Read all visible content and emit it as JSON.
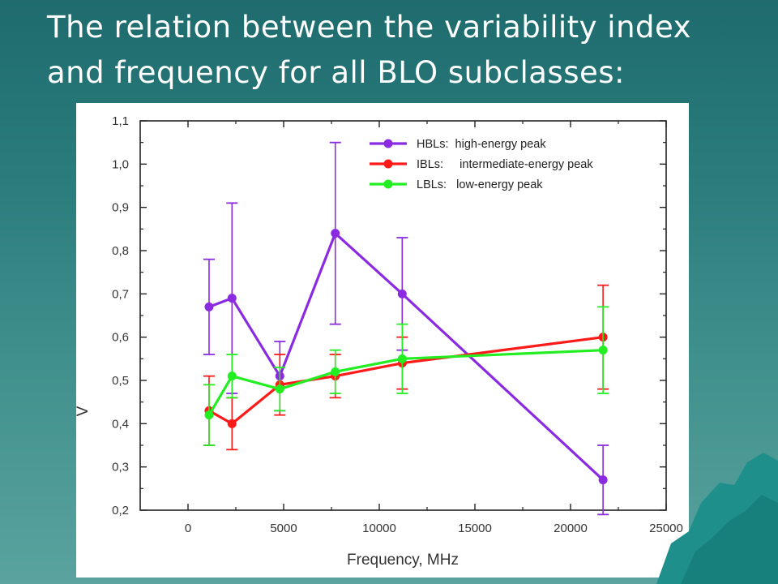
{
  "title": {
    "line1": "The relation between the variability index",
    "line2": "and frequency for all BLO subclasses:"
  },
  "colors": {
    "hbl": "#8a2be2",
    "ibl": "#ff1a1a",
    "lbl": "#22ee22"
  },
  "chart_data": {
    "type": "line",
    "xlabel": "Frequency, MHz",
    "ylabel": "V",
    "xlim": [
      -2500,
      25000
    ],
    "ylim": [
      0.2,
      1.1
    ],
    "xticks": [
      0,
      5000,
      10000,
      15000,
      20000,
      25000
    ],
    "xtick_labels": [
      "0",
      "5000",
      "10000",
      "15000",
      "20000",
      "25000"
    ],
    "yticks": [
      0.2,
      0.3,
      0.4,
      0.5,
      0.6,
      0.7,
      0.8,
      0.9,
      1.0,
      1.1
    ],
    "ytick_labels": [
      "0,2",
      "0,3",
      "0,4",
      "0,5",
      "0,6",
      "0,7",
      "0,8",
      "0,9",
      "1,0",
      "1,1"
    ],
    "legend_position": "top-right",
    "series": [
      {
        "name": "HBLs:  high-energy peak",
        "color": "#8a2be2",
        "x": [
          1100,
          2300,
          4800,
          7700,
          11200,
          21700
        ],
        "y": [
          0.67,
          0.69,
          0.51,
          0.84,
          0.7,
          0.27
        ],
        "err_low": [
          0.56,
          0.47,
          0.43,
          0.63,
          0.57,
          0.19
        ],
        "err_high": [
          0.78,
          0.91,
          0.59,
          1.05,
          0.83,
          0.35
        ]
      },
      {
        "name": "IBLs:     intermediate-energy peak",
        "color": "#ff1a1a",
        "x": [
          1100,
          2300,
          4800,
          7700,
          11200,
          21700
        ],
        "y": [
          0.43,
          0.4,
          0.49,
          0.51,
          0.54,
          0.6
        ],
        "err_low": [
          0.35,
          0.34,
          0.42,
          0.46,
          0.48,
          0.48
        ],
        "err_high": [
          0.51,
          0.46,
          0.56,
          0.56,
          0.6,
          0.72
        ]
      },
      {
        "name": "LBLs:   low-energy peak",
        "color": "#22ee22",
        "x": [
          1100,
          2300,
          4800,
          7700,
          11200,
          21700
        ],
        "y": [
          0.42,
          0.51,
          0.48,
          0.52,
          0.55,
          0.57
        ],
        "err_low": [
          0.35,
          0.46,
          0.43,
          0.47,
          0.47,
          0.47
        ],
        "err_high": [
          0.49,
          0.56,
          0.53,
          0.57,
          0.63,
          0.67
        ]
      }
    ]
  }
}
